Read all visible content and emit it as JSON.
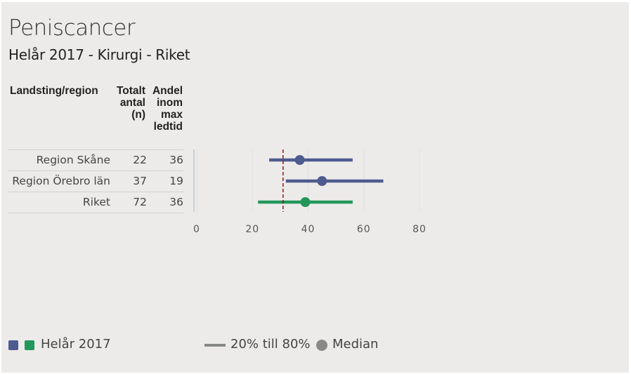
{
  "title": "Peniscancer",
  "subtitle": "Helår 2017 - Kirurgi - Riket",
  "table": {
    "headers": {
      "region": "Landsting/region",
      "total": "Totalt antal (n)",
      "share": "Andel inom max ledtid"
    },
    "rows": [
      {
        "region": "Region Skåne",
        "total": "22",
        "share": "36"
      },
      {
        "region": "Region Örebro län",
        "total": "37",
        "share": "19"
      },
      {
        "region": "Riket",
        "total": "72",
        "share": "36"
      }
    ]
  },
  "chart_data": {
    "type": "scatter",
    "xlim": [
      0,
      80
    ],
    "xticks": [
      0,
      20,
      40,
      60,
      80
    ],
    "tick_labels": [
      "0",
      "20",
      "40",
      "60",
      "80"
    ],
    "reference_line": 31,
    "rows": [
      {
        "label": "Region Skåne",
        "p20": 26,
        "median": 37,
        "p80": 56,
        "color": "#4d5b8f"
      },
      {
        "label": "Region Örebro län",
        "p20": 32,
        "median": 45,
        "p80": 67,
        "color": "#4d5b8f"
      },
      {
        "label": "Riket",
        "p20": 22,
        "median": 39,
        "p80": 56,
        "color": "#21975a"
      }
    ],
    "grid": true
  },
  "legend": {
    "period_label": "Helår 2017",
    "region_color": "#4d5b8f",
    "national_color": "#21975a",
    "range_label": "20% till 80%",
    "median_label": "Median"
  }
}
